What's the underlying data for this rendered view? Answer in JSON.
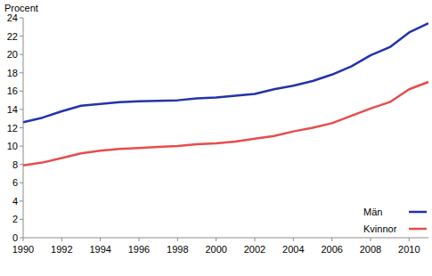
{
  "chart_data": {
    "type": "line",
    "y_label": "Procent",
    "x": [
      1990,
      1991,
      1992,
      1993,
      1994,
      1995,
      1996,
      1997,
      1998,
      1999,
      2000,
      2001,
      2002,
      2003,
      2004,
      2005,
      2006,
      2007,
      2008,
      2009,
      2010,
      2011
    ],
    "series": [
      {
        "name": "Män",
        "color": "#2233aa",
        "values": [
          12.6,
          13.1,
          13.8,
          14.4,
          14.6,
          14.8,
          14.9,
          14.95,
          15.0,
          15.2,
          15.3,
          15.5,
          15.7,
          16.2,
          16.6,
          17.1,
          17.8,
          18.7,
          19.9,
          20.8,
          22.4,
          23.4
        ]
      },
      {
        "name": "Kvinnor",
        "color": "#e84c4c",
        "values": [
          7.9,
          8.2,
          8.7,
          9.2,
          9.5,
          9.7,
          9.8,
          9.9,
          10.0,
          10.2,
          10.3,
          10.5,
          10.8,
          11.1,
          11.6,
          12.0,
          12.5,
          13.3,
          14.1,
          14.8,
          16.2,
          17.0
        ]
      }
    ],
    "xlim": [
      1990,
      2011
    ],
    "xticks": [
      1990,
      1992,
      1994,
      1996,
      1998,
      2000,
      2002,
      2004,
      2006,
      2008,
      2010
    ],
    "ylim": [
      0,
      24
    ],
    "yticks": [
      0,
      2,
      4,
      6,
      8,
      10,
      12,
      14,
      16,
      18,
      20,
      22,
      24
    ],
    "grid": false,
    "legend": "lower right"
  }
}
